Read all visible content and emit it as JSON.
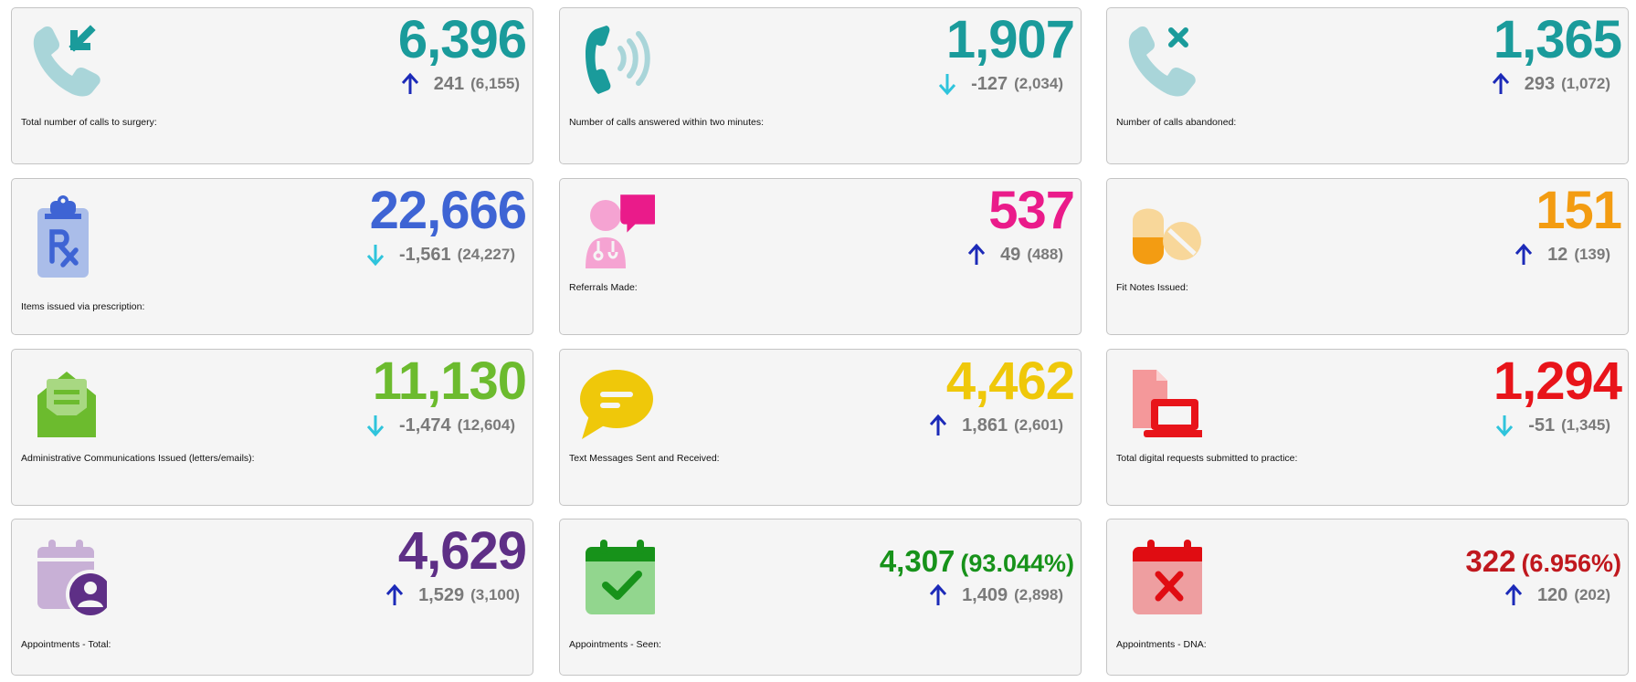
{
  "colors": {
    "teal": "#1a9b9b",
    "blue": "#3e64d4",
    "magenta": "#ea1b8a",
    "orange": "#f39c12",
    "green": "#6cbb2e",
    "yellow": "#efc80a",
    "red": "#e8141a",
    "purple": "#5e2f86",
    "dark_green": "#17921a",
    "dark_red": "#c0181e",
    "arrow_up": "#1c2ab8",
    "arrow_down": "#2fc4dc",
    "change_text": "#7a7a7a"
  },
  "cards": [
    {
      "label": "Total number of calls to surgery:",
      "value": "6,396",
      "change": "241",
      "previous": "(6,155)",
      "direction": "up",
      "icon": "incoming-call-icon"
    },
    {
      "label": "Number of calls answered within two minutes:",
      "value": "1,907",
      "change": "-127",
      "previous": "(2,034)",
      "direction": "down",
      "icon": "phone-ringing-icon"
    },
    {
      "label": "Number of calls abandoned:",
      "value": "1,365",
      "change": "293",
      "previous": "(1,072)",
      "direction": "up",
      "icon": "missed-call-icon"
    },
    {
      "label": "Items issued via prescription:",
      "value": "22,666",
      "change": "-1,561",
      "previous": "(24,227)",
      "direction": "down",
      "icon": "prescription-clipboard-icon"
    },
    {
      "label": "Referrals Made:",
      "value": "537",
      "change": "49",
      "previous": "(488)",
      "direction": "up",
      "icon": "doctor-referral-icon"
    },
    {
      "label": "Fit Notes Issued:",
      "value": "151",
      "change": "12",
      "previous": "(139)",
      "direction": "up",
      "icon": "pills-icon"
    },
    {
      "label": "Administrative Communications Issued (letters/emails):",
      "value": "11,130",
      "change": "-1,474",
      "previous": "(12,604)",
      "direction": "down",
      "icon": "open-envelope-icon"
    },
    {
      "label": "Text Messages Sent and Received:",
      "value": "4,462",
      "change": "1,861",
      "previous": "(2,601)",
      "direction": "up",
      "icon": "chat-bubble-icon"
    },
    {
      "label": "Total digital requests submitted to practice:",
      "value": "1,294",
      "change": "-51",
      "previous": "(1,345)",
      "direction": "down",
      "icon": "laptop-document-icon"
    },
    {
      "label": "Appointments - Total:",
      "value": "4,629",
      "change": "1,529",
      "previous": "(3,100)",
      "direction": "up",
      "icon": "calendar-user-icon"
    },
    {
      "label": "Appointments - Seen:",
      "value": "4,307",
      "percent": "(93.044%)",
      "change": "1,409",
      "previous": "(2,898)",
      "direction": "up",
      "icon": "calendar-check-icon"
    },
    {
      "label": "Appointments - DNA:",
      "value": "322",
      "percent": "(6.956%)",
      "change": "120",
      "previous": "(202)",
      "direction": "up",
      "icon": "calendar-cross-icon"
    }
  ]
}
